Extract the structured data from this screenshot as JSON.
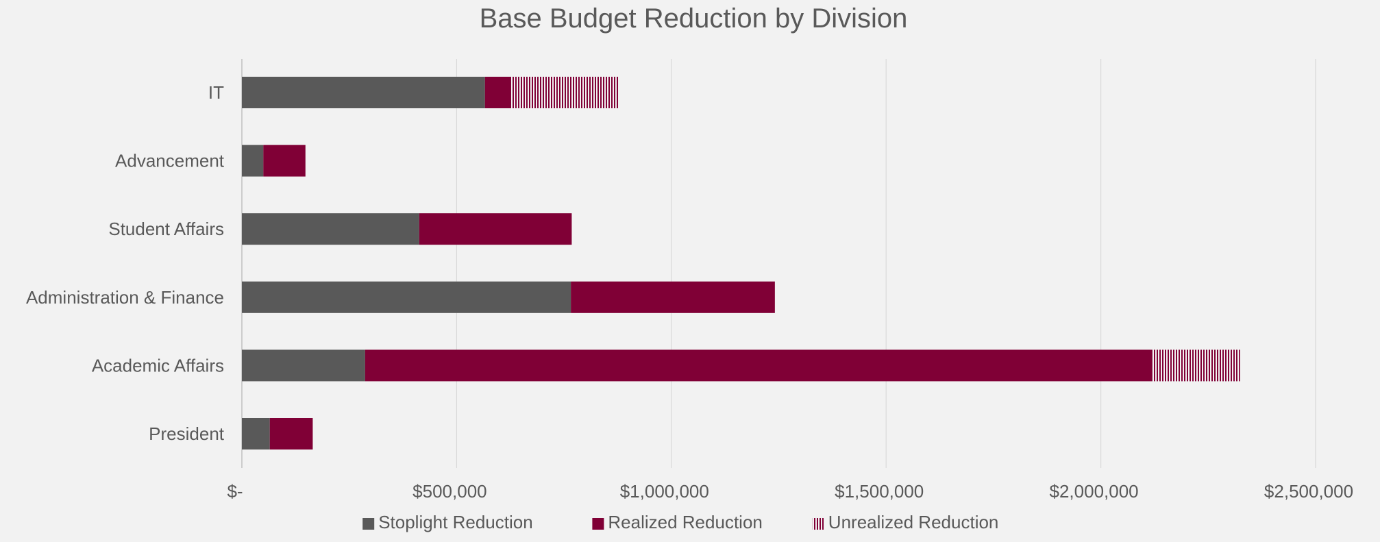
{
  "chart_data": {
    "type": "bar",
    "orientation": "horizontal",
    "stacked": true,
    "title": "Base Budget Reduction by Division",
    "categories": [
      "IT",
      "Advancement",
      "Student Affairs",
      "Administration & Finance",
      "Academic Affairs",
      "President"
    ],
    "series": [
      {
        "name": "Stoplight Reduction",
        "color": "#595959",
        "pattern": "solid",
        "values": [
          566000,
          50000,
          413000,
          766000,
          287000,
          65000
        ]
      },
      {
        "name": "Realized Reduction",
        "color": "#800036",
        "pattern": "solid",
        "values": [
          61000,
          98000,
          355000,
          475000,
          1833000,
          100000
        ]
      },
      {
        "name": "Unrealized Reduction",
        "color": "#800036",
        "pattern": "vertical-stripes",
        "values": [
          250000,
          0,
          0,
          0,
          204000,
          0
        ]
      }
    ],
    "xlim": [
      0,
      2500000
    ],
    "x_ticks": [
      0,
      500000,
      1000000,
      1500000,
      2000000,
      2500000
    ],
    "x_tick_labels": [
      "$-",
      "$500,000",
      "$1,000,000",
      "$1,500,000",
      "$2,000,000",
      "$2,500,000"
    ],
    "grid": "vertical",
    "legend_position": "bottom"
  }
}
